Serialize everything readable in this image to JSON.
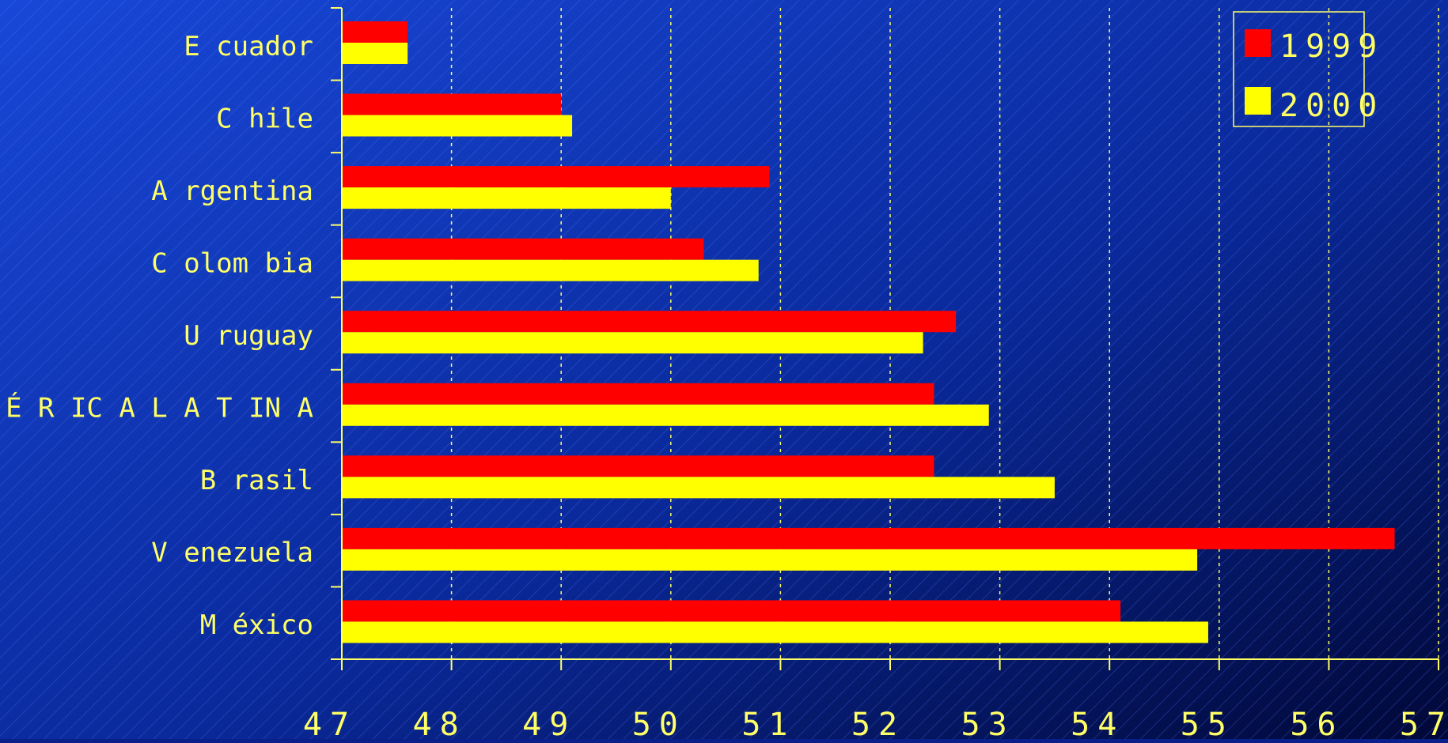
{
  "chart_data": {
    "type": "bar",
    "orientation": "horizontal",
    "title": "",
    "xlabel": "",
    "ylabel": "",
    "categories": [
      "Ecuador",
      "Chile",
      "Argentina",
      "Colombia",
      "Uruguay",
      "AMÉRICA LATINA",
      "Brasil",
      "Venezuela",
      "México"
    ],
    "category_labels": [
      "E cuador",
      "C hile",
      "A rgentina",
      "C olom bia",
      "U ruguay",
      "A M É R IC A  L A T IN A",
      "B rasil",
      "V enezuela",
      "M éxico"
    ],
    "series": [
      {
        "name": "1999",
        "color": "#ff0000",
        "values": [
          47.6,
          49.0,
          50.9,
          50.3,
          52.6,
          52.4,
          52.4,
          56.6,
          54.1
        ]
      },
      {
        "name": "2000",
        "color": "#ffff00",
        "values": [
          47.6,
          49.1,
          50.0,
          50.8,
          52.3,
          52.9,
          53.5,
          54.8,
          54.9
        ]
      }
    ],
    "xlim": [
      47,
      57
    ],
    "x_ticks": [
      47,
      48,
      49,
      50,
      51,
      52,
      53,
      54,
      55,
      56,
      57
    ],
    "x_tick_labels": [
      "47",
      "48",
      "49",
      "50",
      "51",
      "52",
      "53",
      "54",
      "55",
      "56",
      "57"
    ],
    "grid": "vertical dotted",
    "legend_position": "top-right"
  },
  "colors": {
    "text": "#ffff66",
    "axis": "#ffff66",
    "background_top": "#1240c8",
    "background_bottom": "#00104a"
  }
}
